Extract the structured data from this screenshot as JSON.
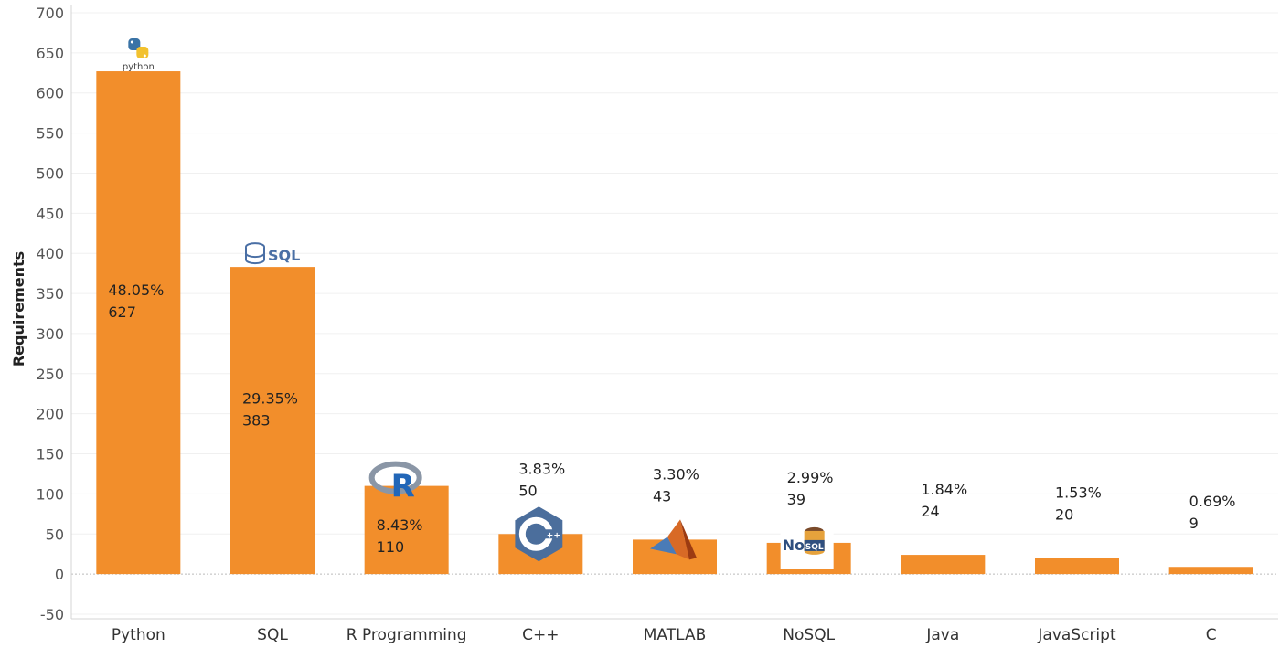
{
  "chart_data": {
    "type": "bar",
    "ylabel": "Requirements",
    "xlabel": "",
    "ylim": [
      -50,
      700
    ],
    "yticks": [
      -50,
      0,
      50,
      100,
      150,
      200,
      250,
      300,
      350,
      400,
      450,
      500,
      550,
      600,
      650,
      700
    ],
    "grid": true,
    "bar_color": "#F28E2B",
    "categories": [
      "Python",
      "SQL",
      "R Programming",
      "C++",
      "MATLAB",
      "NoSQL",
      "Java",
      "JavaScript",
      "C"
    ],
    "values": [
      627,
      383,
      110,
      50,
      43,
      39,
      24,
      20,
      9
    ],
    "percent_labels": [
      "48.05%",
      "29.35%",
      "8.43%",
      "3.83%",
      "3.30%",
      "2.99%",
      "1.84%",
      "1.53%",
      "0.69%"
    ],
    "logos": [
      {
        "category": "Python",
        "icon": "python-logo-icon",
        "text": "python"
      },
      {
        "category": "SQL",
        "icon": "sql-database-icon",
        "text": "SQL"
      },
      {
        "category": "R Programming",
        "icon": "r-logo-icon",
        "text": "R"
      },
      {
        "category": "C++",
        "icon": "cpp-logo-icon",
        "text": "C++"
      },
      {
        "category": "MATLAB",
        "icon": "matlab-logo-icon",
        "text": ""
      },
      {
        "category": "NoSQL",
        "icon": "nosql-logo-icon",
        "text": "NoSQL"
      }
    ]
  }
}
